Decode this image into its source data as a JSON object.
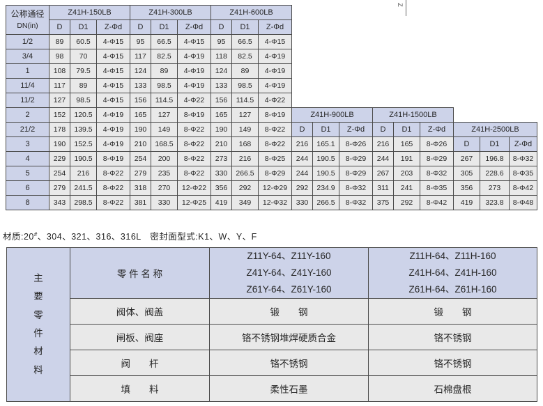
{
  "corner_fragment": "Z",
  "spec_table": {
    "corner_header": [
      "公称通径",
      "DN(in)"
    ],
    "col_headers": [
      "D",
      "D1",
      "Z-Φd"
    ],
    "dn_rows": [
      "1/2",
      "3/4",
      "1",
      "11/4",
      "11/2",
      "2",
      "21/2",
      "3",
      "4",
      "5",
      "6",
      "8"
    ],
    "groups": [
      {
        "name": "Z41H-150LB",
        "header_band": 0,
        "rows": [
          [
            "89",
            "60.5",
            "4-Φ15"
          ],
          [
            "98",
            "70",
            "4-Φ15"
          ],
          [
            "108",
            "79.5",
            "4-Φ15"
          ],
          [
            "117",
            "89",
            "4-Φ15"
          ],
          [
            "127",
            "98.5",
            "4-Φ15"
          ],
          [
            "152",
            "120.5",
            "4-Φ19"
          ],
          [
            "178",
            "139.5",
            "4-Φ19"
          ],
          [
            "190",
            "152.5",
            "4-Φ19"
          ],
          [
            "229",
            "190.5",
            "8-Φ19"
          ],
          [
            "254",
            "216",
            "8-Φ22"
          ],
          [
            "279",
            "241.5",
            "8-Φ22"
          ],
          [
            "343",
            "298.5",
            "8-Φ22"
          ]
        ]
      },
      {
        "name": "Z41H-300LB",
        "header_band": 0,
        "rows": [
          [
            "95",
            "66.5",
            "4-Φ15"
          ],
          [
            "117",
            "82.5",
            "4-Φ19"
          ],
          [
            "124",
            "89",
            "4-Φ19"
          ],
          [
            "133",
            "98.5",
            "4-Φ19"
          ],
          [
            "156",
            "114.5",
            "4-Φ22"
          ],
          [
            "165",
            "127",
            "8-Φ19"
          ],
          [
            "190",
            "149",
            "8-Φ22"
          ],
          [
            "210",
            "168.5",
            "8-Φ22"
          ],
          [
            "254",
            "200",
            "8-Φ22"
          ],
          [
            "279",
            "235",
            "8-Φ22"
          ],
          [
            "318",
            "270",
            "12-Φ22"
          ],
          [
            "381",
            "330",
            "12-Φ25"
          ]
        ]
      },
      {
        "name": "Z41H-600LB",
        "header_band": 0,
        "rows": [
          [
            "95",
            "66.5",
            "4-Φ15"
          ],
          [
            "118",
            "82.5",
            "4-Φ19"
          ],
          [
            "124",
            "89",
            "4-Φ19"
          ],
          [
            "133",
            "98.5",
            "4-Φ19"
          ],
          [
            "156",
            "114.5",
            "4-Φ22"
          ],
          [
            "165",
            "127",
            "8-Φ19"
          ],
          [
            "190",
            "149",
            "8-Φ22"
          ],
          [
            "210",
            "168",
            "8-Φ22"
          ],
          [
            "273",
            "216",
            "8-Φ25"
          ],
          [
            "330",
            "266.5",
            "8-Φ29"
          ],
          [
            "356",
            "292",
            "12-Φ29"
          ],
          [
            "419",
            "349",
            "12-Φ32"
          ]
        ]
      },
      {
        "name": "Z41H-900LB",
        "header_band": 5,
        "rows": [
          [
            "216",
            "165.1",
            "8-Φ26"
          ],
          [
            "244",
            "190.5",
            "8-Φ29"
          ],
          [
            "244",
            "190.5",
            "8-Φ29"
          ],
          [
            "292",
            "234.9",
            "8-Φ32"
          ],
          [
            "330",
            "266.5",
            "8-Φ32"
          ],
          [
            "381",
            "317.5",
            "8-Φ32"
          ],
          [
            "480",
            "393.7",
            "12-Φ39"
          ]
        ]
      },
      {
        "name": "Z41H-1500LB",
        "header_band": 5,
        "rows": [
          [
            "216",
            "165",
            "8-Φ26"
          ],
          [
            "244",
            "191",
            "8-Φ29"
          ],
          [
            "267",
            "203",
            "8-Φ32"
          ],
          [
            "311",
            "241",
            "8-Φ35"
          ],
          [
            "375",
            "292",
            "8-Φ42"
          ],
          [
            "394",
            "318",
            "12-Φ39"
          ],
          [
            "483",
            "394",
            "12-Φ45"
          ]
        ]
      },
      {
        "name": "Z41H-2500LB",
        "header_band": 6,
        "rows": [
          [
            "267",
            "196.8",
            "8-Φ32"
          ],
          [
            "305",
            "228.6",
            "8-Φ35"
          ],
          [
            "356",
            "273",
            "8-Φ42"
          ],
          [
            "419",
            "323.8",
            "8-Φ48"
          ],
          [
            "483",
            "368.3",
            "8-Φ54"
          ],
          [
            "550",
            "438.1",
            "12-Φ54"
          ]
        ]
      }
    ]
  },
  "note": {
    "prefix": "材质:20",
    "sup": "#",
    "rest": "、304、321、316、316L　密封面型式:K1、W、Y、F"
  },
  "materials_table": {
    "side_label": "主要零件材料",
    "part_name_header": "零 件 名 称",
    "model_columns": [
      [
        "Z11Y-64、Z11Y-160",
        "Z41Y-64、Z41Y-160",
        "Z61Y-64、Z61Y-160"
      ],
      [
        "Z11H-64、Z11H-160",
        "Z41H-64、Z41H-160",
        "Z61H-64、Z61H-160"
      ]
    ],
    "rows": [
      {
        "part": "阀体、阀盖",
        "col1": "锻　　钢",
        "col2": "锻　　钢"
      },
      {
        "part": "闸板、阀座",
        "col1": "铬不锈钢堆焊硬质合金",
        "col2": "铬不锈钢"
      },
      {
        "part": "阀　　杆",
        "col1": "铬不锈钢",
        "col2": "铬不锈钢"
      },
      {
        "part": "填　　料",
        "col1": "柔性石墨",
        "col2": "石棉盘根"
      }
    ]
  }
}
